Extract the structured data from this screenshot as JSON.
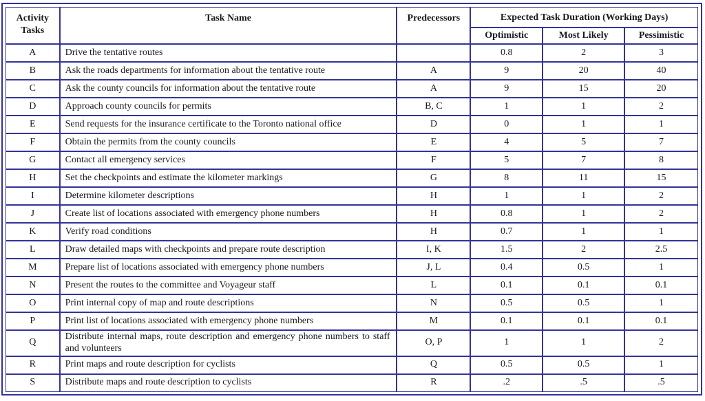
{
  "table": {
    "border_color": "#333399",
    "frame_color": "#32329a",
    "headers": {
      "activity": "Activity Tasks",
      "task_name": "Task Name",
      "predecessors": "Predecessors",
      "duration_group": "Expected Task Duration (Working Days)",
      "optimistic": "Optimistic",
      "most_likely": "Most Likely",
      "pessimistic": "Pessimistic"
    },
    "rows": [
      {
        "id": "A",
        "task": "Drive the tentative routes",
        "pred": "",
        "opt": "0.8",
        "ml": "2",
        "pess": "3"
      },
      {
        "id": "B",
        "task": "Ask the roads departments for information about the tentative route",
        "pred": "A",
        "opt": "9",
        "ml": "20",
        "pess": "40"
      },
      {
        "id": "C",
        "task": "Ask the county councils for information about the tentative route",
        "pred": "A",
        "opt": "9",
        "ml": "15",
        "pess": "20"
      },
      {
        "id": "D",
        "task": "Approach county councils for permits",
        "pred": "B, C",
        "opt": "1",
        "ml": "1",
        "pess": "2"
      },
      {
        "id": "E",
        "task": "Send requests for the insurance certificate to the Toronto national office",
        "pred": "D",
        "opt": "0",
        "ml": "1",
        "pess": "1"
      },
      {
        "id": "F",
        "task": "Obtain the permits from the county councils",
        "pred": "E",
        "opt": "4",
        "ml": "5",
        "pess": "7"
      },
      {
        "id": "G",
        "task": "Contact all emergency services",
        "pred": "F",
        "opt": "5",
        "ml": "7",
        "pess": "8"
      },
      {
        "id": "H",
        "task": "Set the checkpoints and estimate the kilometer markings",
        "pred": "G",
        "opt": "8",
        "ml": "11",
        "pess": "15"
      },
      {
        "id": "I",
        "task": "Determine kilometer descriptions",
        "pred": "H",
        "opt": "1",
        "ml": "1",
        "pess": "2"
      },
      {
        "id": "J",
        "task": "Create list of locations associated with emergency phone numbers",
        "pred": "H",
        "opt": "0.8",
        "ml": "1",
        "pess": "2"
      },
      {
        "id": "K",
        "task": "Verify road conditions",
        "pred": "H",
        "opt": "0.7",
        "ml": "1",
        "pess": "1"
      },
      {
        "id": "L",
        "task": "Draw detailed maps with checkpoints and prepare route description",
        "pred": "I, K",
        "opt": "1.5",
        "ml": "2",
        "pess": "2.5"
      },
      {
        "id": "M",
        "task": "Prepare list of locations associated with emergency phone numbers",
        "pred": "J, L",
        "opt": "0.4",
        "ml": "0.5",
        "pess": "1"
      },
      {
        "id": "N",
        "task": "Present the routes to the committee and Voyageur staff",
        "pred": "L",
        "opt": "0.1",
        "ml": "0.1",
        "pess": "0.1"
      },
      {
        "id": "O",
        "task": "Print internal copy of map and route descriptions",
        "pred": "N",
        "opt": "0.5",
        "ml": "0.5",
        "pess": "1"
      },
      {
        "id": "P",
        "task": "Print list of locations associated with emergency phone numbers",
        "pred": "M",
        "opt": "0.1",
        "ml": "0.1",
        "pess": "0.1"
      },
      {
        "id": "Q",
        "task": "Distribute internal maps, route description and emergency phone numbers to staff and volunteers",
        "pred": "O, P",
        "opt": "1",
        "ml": "1",
        "pess": "2"
      },
      {
        "id": "R",
        "task": "Print maps and route description for cyclists",
        "pred": "Q",
        "opt": "0.5",
        "ml": "0.5",
        "pess": "1"
      },
      {
        "id": "S",
        "task": "Distribute maps and route description to cyclists",
        "pred": "R",
        "opt": ".2",
        "ml": ".5",
        "pess": ".5"
      }
    ]
  }
}
